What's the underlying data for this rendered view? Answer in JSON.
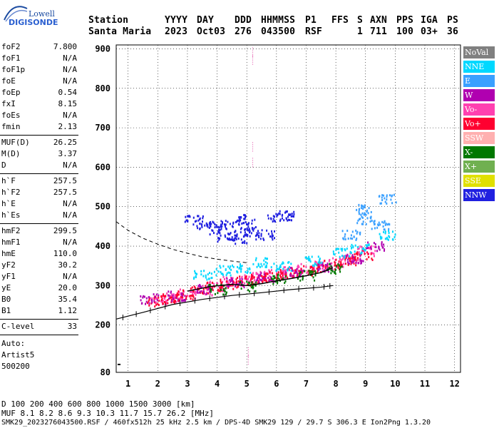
{
  "logo": {
    "top": "Lowell",
    "bottom": "DIGISONDE"
  },
  "header": {
    "labels": [
      "Station",
      "YYYY",
      "DAY",
      "DDD",
      "HHMMSS",
      "P1",
      "FFS",
      "S",
      "AXN",
      "PPS",
      "IGA",
      "PS"
    ],
    "values": [
      "Santa Maria",
      "2023",
      "Oct03",
      "276",
      "043500",
      "RSF",
      "1",
      "711",
      "100",
      "03+",
      "36"
    ]
  },
  "params": {
    "group1": [
      [
        "foF2",
        "7.800"
      ],
      [
        "foF1",
        "N/A"
      ],
      [
        "foF1p",
        "N/A"
      ],
      [
        "foE",
        "N/A"
      ],
      [
        "foEp",
        "0.54"
      ],
      [
        "fxI",
        "8.15"
      ],
      [
        "foEs",
        "N/A"
      ],
      [
        "fmin",
        "2.13"
      ]
    ],
    "group2": [
      [
        "MUF(D)",
        "26.25"
      ],
      [
        "M(D)",
        "3.37"
      ],
      [
        "D",
        "N/A"
      ]
    ],
    "group3": [
      [
        "h`F",
        "257.5"
      ],
      [
        "h`F2",
        "257.5"
      ],
      [
        "h`E",
        "N/A"
      ],
      [
        "h`Es",
        "N/A"
      ]
    ],
    "group4": [
      [
        "hmF2",
        "299.5"
      ],
      [
        "hmF1",
        "N/A"
      ],
      [
        "hmE",
        "110.0"
      ],
      [
        "yF2",
        "30.2"
      ],
      [
        "yF1",
        "N/A"
      ],
      [
        "yE",
        "20.0"
      ],
      [
        "B0",
        "35.4"
      ],
      [
        "B1",
        "1.12"
      ]
    ],
    "group5": [
      [
        "C-level",
        "33"
      ]
    ],
    "auto": [
      "Auto:",
      "Artist5",
      "500200"
    ]
  },
  "legend": [
    {
      "label": "NoVal",
      "color": "#808080"
    },
    {
      "label": "NNE",
      "color": "#00d8ff"
    },
    {
      "label": "E",
      "color": "#3aa0ff"
    },
    {
      "label": "W",
      "color": "#b000b0"
    },
    {
      "label": "Vo-",
      "color": "#ff40b0"
    },
    {
      "label": "Vo+",
      "color": "#ff0030"
    },
    {
      "label": "SSW",
      "color": "#ffb0b0"
    },
    {
      "label": "X-",
      "color": "#007800"
    },
    {
      "label": "X+",
      "color": "#70b050"
    },
    {
      "label": "SSE",
      "color": "#e0e000"
    },
    {
      "label": "NNW",
      "color": "#2020e0"
    }
  ],
  "footer": {
    "d_row": "D    100  200  400  600  800 1000 1500 3000 [km]",
    "muf_row": "MUF  8.1  8.2  8.6  9.3 10.3 11.7 15.7 26.2 [MHz]",
    "info": "SMK29_2023276043500.RSF / 460fx512h 25 kHz 2.5 km / DPS-4D SMK29 129 / 29.7 S 306.3 E Ion2Png 1.3.20"
  },
  "chart_data": {
    "type": "scatter",
    "x_ticks": [
      1,
      2,
      3,
      4,
      5,
      6,
      7,
      8,
      9,
      10,
      11,
      12
    ],
    "y_ticks": [
      80,
      200,
      300,
      400,
      500,
      600,
      700,
      800,
      900
    ],
    "xlim": [
      0.6,
      12.2
    ],
    "ylim": [
      80,
      910
    ],
    "grid": true,
    "echo_series": [
      {
        "name": "Vo-",
        "color": "#ff40b0",
        "points": [
          [
            2.0,
            265
          ],
          [
            2.5,
            272
          ],
          [
            3.0,
            280
          ],
          [
            3.5,
            290
          ],
          [
            4.0,
            300
          ],
          [
            4.5,
            312
          ],
          [
            5.0,
            318
          ],
          [
            5.5,
            325
          ],
          [
            6.0,
            330
          ],
          [
            6.5,
            338
          ],
          [
            7.0,
            345
          ],
          [
            7.5,
            352
          ],
          [
            8.0,
            360
          ],
          [
            8.5,
            372
          ],
          [
            9.0,
            390
          ]
        ]
      },
      {
        "name": "Vo+",
        "color": "#ff0030",
        "points": [
          [
            1.9,
            262
          ],
          [
            2.4,
            270
          ],
          [
            2.9,
            278
          ],
          [
            3.4,
            288
          ],
          [
            3.9,
            298
          ],
          [
            4.4,
            306
          ],
          [
            4.9,
            314
          ],
          [
            5.4,
            320
          ],
          [
            5.9,
            326
          ],
          [
            6.4,
            334
          ],
          [
            6.9,
            340
          ],
          [
            7.4,
            348
          ],
          [
            7.9,
            356
          ],
          [
            8.4,
            366
          ],
          [
            8.9,
            380
          ]
        ]
      },
      {
        "name": "W",
        "color": "#b000b0",
        "points": [
          [
            1.7,
            268
          ],
          [
            2.6,
            275
          ],
          [
            3.6,
            292
          ],
          [
            4.6,
            310
          ],
          [
            5.6,
            322
          ],
          [
            6.6,
            336
          ],
          [
            7.6,
            350
          ],
          [
            8.6,
            370
          ],
          [
            9.3,
            400
          ]
        ]
      },
      {
        "name": "NNE",
        "color": "#00d8ff",
        "points": [
          [
            3.5,
            330
          ],
          [
            4.2,
            340
          ],
          [
            4.8,
            345
          ],
          [
            5.5,
            360
          ],
          [
            6.2,
            350
          ],
          [
            7.2,
            365
          ],
          [
            8.2,
            385
          ],
          [
            8.8,
            395
          ],
          [
            9.7,
            430
          ]
        ]
      },
      {
        "name": "NNW",
        "color": "#2020e0",
        "points": [
          [
            3.2,
            470
          ],
          [
            3.6,
            455
          ],
          [
            4.0,
            445
          ],
          [
            4.4,
            460
          ],
          [
            4.8,
            450
          ],
          [
            5.2,
            440
          ],
          [
            5.6,
            430
          ],
          [
            6.0,
            475
          ],
          [
            6.4,
            480
          ],
          [
            5.0,
            470
          ],
          [
            4.3,
            425
          ],
          [
            4.7,
            420
          ]
        ]
      },
      {
        "name": "X-",
        "color": "#007800",
        "points": [
          [
            4.0,
            292
          ],
          [
            5.0,
            300
          ],
          [
            6.0,
            318
          ],
          [
            7.0,
            328
          ],
          [
            8.0,
            345
          ]
        ]
      },
      {
        "name": "E",
        "color": "#3aa0ff",
        "points": [
          [
            8.5,
            430
          ],
          [
            9.0,
            470
          ],
          [
            9.5,
            455
          ],
          [
            8.9,
            495
          ],
          [
            9.7,
            520
          ]
        ]
      }
    ],
    "profile_line": [
      [
        0.6,
        215
      ],
      [
        1.5,
        232
      ],
      [
        2.5,
        252
      ],
      [
        3.5,
        265
      ],
      [
        4.5,
        275
      ],
      [
        5.5,
        282
      ],
      [
        6.5,
        290
      ],
      [
        7.5,
        296
      ],
      [
        7.9,
        300
      ]
    ],
    "dashed_curve": [
      [
        0.6,
        462
      ],
      [
        1.0,
        440
      ],
      [
        1.5,
        420
      ],
      [
        2.0,
        405
      ],
      [
        2.5,
        392
      ],
      [
        3.0,
        382
      ],
      [
        3.5,
        373
      ],
      [
        4.0,
        367
      ],
      [
        4.5,
        362
      ],
      [
        5.0,
        358
      ]
    ],
    "model_trace": [
      [
        3.0,
        286
      ],
      [
        3.8,
        298
      ],
      [
        4.5,
        303
      ],
      [
        5.0,
        300
      ],
      [
        5.5,
        305
      ],
      [
        6.0,
        312
      ],
      [
        6.5,
        318
      ],
      [
        7.0,
        325
      ],
      [
        7.5,
        333
      ],
      [
        7.9,
        345
      ]
    ]
  }
}
